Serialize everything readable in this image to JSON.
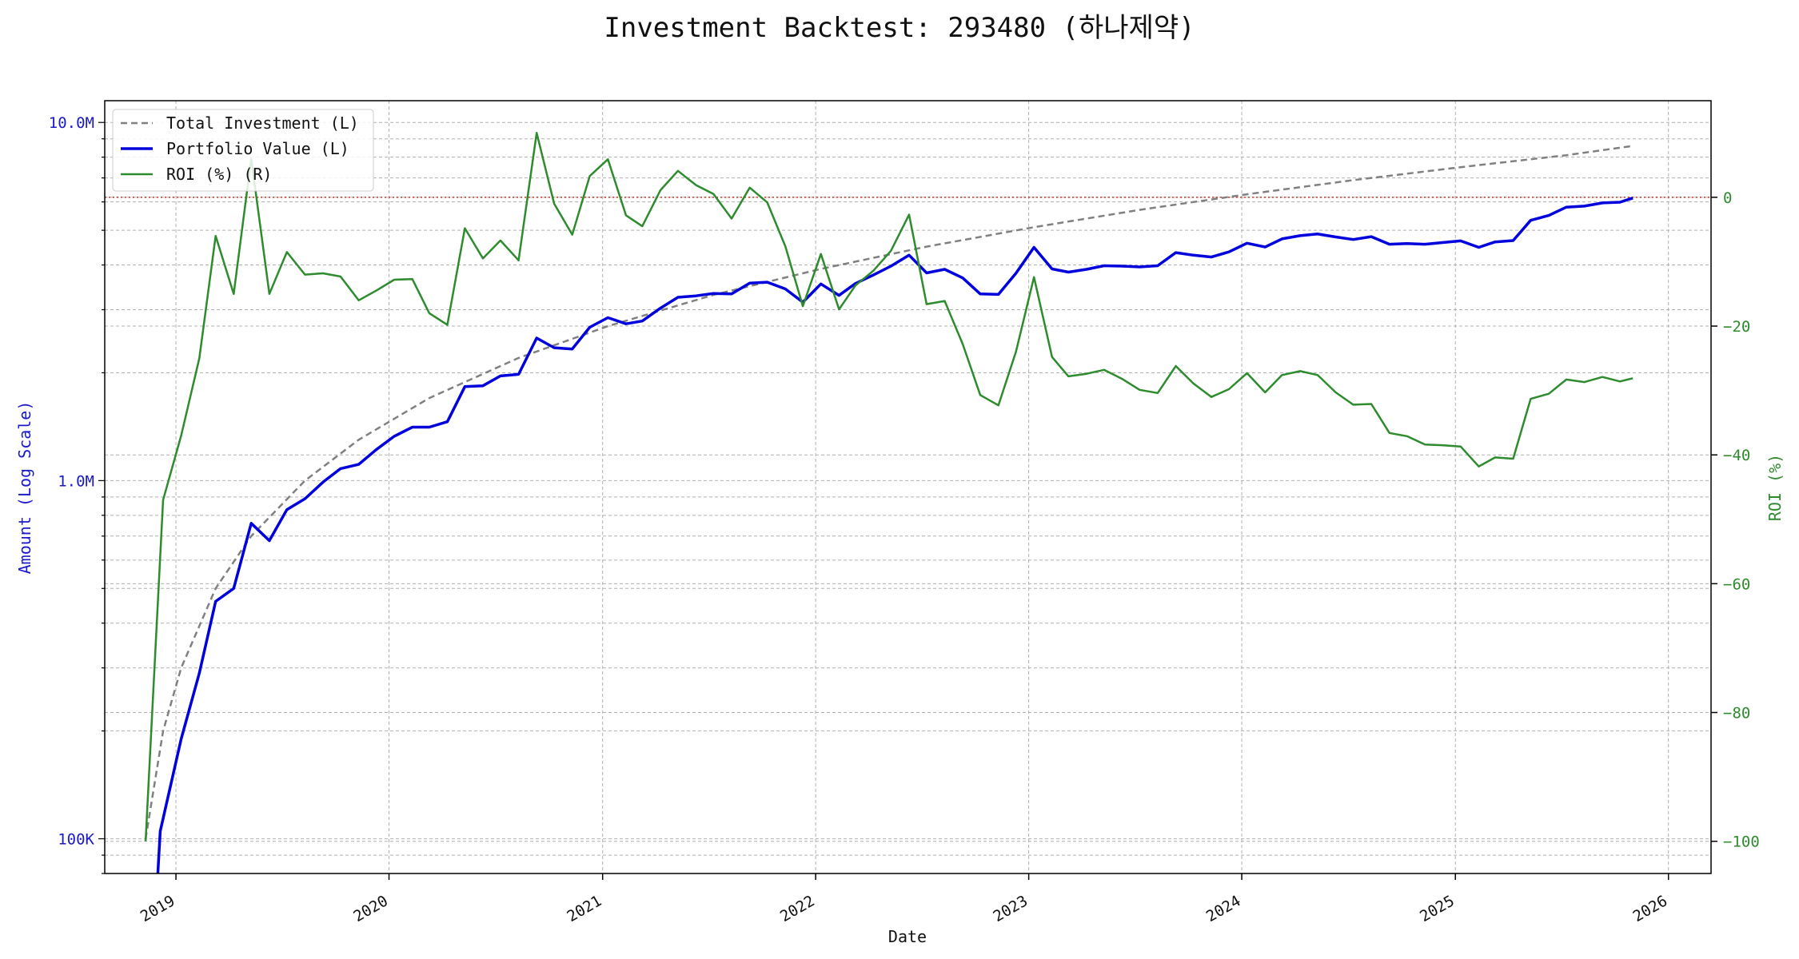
{
  "chart_data": {
    "type": "line",
    "title": "Investment Backtest: 293480 (하나제약)",
    "xlabel": "Date",
    "ylabel_left": "Amount (Log Scale)",
    "ylabel_right": "ROI (%)",
    "left_scale": "log",
    "left_ylim": [
      80000,
      11500000
    ],
    "right_ylim": [
      -105,
      15
    ],
    "x_range": [
      "2018-09-01",
      "2026-03-15"
    ],
    "x_ticks": [
      "2019",
      "2020",
      "2021",
      "2022",
      "2023",
      "2024",
      "2025",
      "2026"
    ],
    "left_ticks": [
      {
        "value": 100000,
        "label": "100K"
      },
      {
        "value": 1000000,
        "label": "1.0M"
      },
      {
        "value": 10000000,
        "label": "10.0M"
      }
    ],
    "right_ticks": [
      0,
      -20,
      -40,
      -60,
      -80,
      -100
    ],
    "zero_line_color": "#c0392b",
    "grid": true,
    "legend_position": "upper-left",
    "legend": [
      {
        "label": "Total Investment (L)",
        "color": "#808080",
        "style": "dashed"
      },
      {
        "label": "Portfolio Value (L)",
        "color": "#0000dd",
        "style": "solid"
      },
      {
        "label": "ROI (%) (R)",
        "color": "#2e8b2e",
        "style": "solid"
      }
    ],
    "series": [
      {
        "name": "Total Investment (L)",
        "axis": "left",
        "color": "#808080",
        "dash": true,
        "x": [
          "2018-11-10",
          "2018-12-10",
          "2019-01-10",
          "2019-03-10",
          "2019-05-10",
          "2019-08-10",
          "2019-11-10",
          "2020-03-10",
          "2020-08-10",
          "2021-01-10",
          "2021-07-10",
          "2022-01-10",
          "2022-07-10",
          "2023-01-10",
          "2023-07-10",
          "2024-01-10",
          "2024-07-10",
          "2025-01-10",
          "2025-07-10",
          "2025-11-01"
        ],
        "values": [
          100000,
          200000,
          300000,
          500000,
          700000,
          1000000,
          1300000,
          1700000,
          2200000,
          2700000,
          3300000,
          3900000,
          4500000,
          5100000,
          5700000,
          6300000,
          6900000,
          7500000,
          8100000,
          8600000
        ]
      },
      {
        "name": "Portfolio Value (L)",
        "axis": "left",
        "color": "#0000dd",
        "dash": false,
        "x": [
          "2018-12-01",
          "2018-12-05",
          "2019-01-10",
          "2019-02-10",
          "2019-03-10",
          "2019-04-10",
          "2019-05-10",
          "2019-06-10",
          "2019-07-10",
          "2019-08-10",
          "2019-09-10",
          "2019-10-10",
          "2019-11-10",
          "2019-12-10",
          "2020-01-10",
          "2020-02-10",
          "2020-03-10",
          "2020-04-10",
          "2020-05-10",
          "2020-06-10",
          "2020-07-10",
          "2020-08-10",
          "2020-09-10",
          "2020-10-10",
          "2020-11-10",
          "2020-12-10",
          "2021-01-10",
          "2021-02-10",
          "2021-03-10",
          "2021-04-10",
          "2021-05-10",
          "2021-06-10",
          "2021-07-10",
          "2021-08-10",
          "2021-09-10",
          "2021-10-10",
          "2021-11-10",
          "2021-12-10",
          "2022-01-10",
          "2022-02-10",
          "2022-03-10",
          "2022-04-10",
          "2022-05-10",
          "2022-06-10",
          "2022-07-10",
          "2022-08-10",
          "2022-09-10",
          "2022-10-10",
          "2022-11-10",
          "2022-12-10",
          "2023-01-10",
          "2023-02-10",
          "2023-03-10",
          "2023-04-10",
          "2023-05-10",
          "2023-06-10",
          "2023-07-10",
          "2023-08-10",
          "2023-09-10",
          "2023-10-10",
          "2023-11-10",
          "2023-12-10",
          "2024-01-10",
          "2024-02-10",
          "2024-03-10",
          "2024-04-10",
          "2024-05-10",
          "2024-06-10",
          "2024-07-10",
          "2024-08-10",
          "2024-09-10",
          "2024-10-10",
          "2024-11-10",
          "2024-12-10",
          "2025-01-10",
          "2025-02-10",
          "2025-03-10",
          "2025-04-10",
          "2025-05-10",
          "2025-06-10",
          "2025-07-10",
          "2025-08-10",
          "2025-09-10",
          "2025-10-10",
          "2025-11-01"
        ],
        "values": [
          80000,
          105000,
          190000,
          290000,
          460000,
          500000,
          760000,
          680000,
          830000,
          890000,
          990000,
          1080000,
          1110000,
          1220000,
          1330000,
          1410000,
          1410000,
          1460000,
          1830000,
          1840000,
          1960000,
          1980000,
          2500000,
          2350000,
          2330000,
          2680000,
          2850000,
          2740000,
          2790000,
          3030000,
          3250000,
          3280000,
          3330000,
          3320000,
          3560000,
          3580000,
          3430000,
          3150000,
          3540000,
          3290000,
          3550000,
          3750000,
          3970000,
          4260000,
          3800000,
          3890000,
          3680000,
          3320000,
          3310000,
          3790000,
          4480000,
          3900000,
          3820000,
          3890000,
          3980000,
          3970000,
          3950000,
          3980000,
          4330000,
          4260000,
          4210000,
          4350000,
          4600000,
          4490000,
          4730000,
          4830000,
          4880000,
          4790000,
          4710000,
          4800000,
          4570000,
          4590000,
          4570000,
          4620000,
          4670000,
          4480000,
          4640000,
          4680000,
          5330000,
          5500000,
          5800000,
          5840000,
          5960000,
          5990000,
          6150000
        ]
      },
      {
        "name": "ROI (%) (R)",
        "axis": "right",
        "color": "#2e8b2e",
        "dash": false,
        "x": [
          "2018-11-10",
          "2018-12-10",
          "2019-01-10",
          "2019-02-10",
          "2019-03-10",
          "2019-04-10",
          "2019-05-10",
          "2019-06-10",
          "2019-07-10",
          "2019-08-10",
          "2019-09-10",
          "2019-10-10",
          "2019-11-10",
          "2019-12-10",
          "2020-01-10",
          "2020-02-10",
          "2020-03-10",
          "2020-04-10",
          "2020-05-10",
          "2020-06-10",
          "2020-07-10",
          "2020-08-10",
          "2020-09-10",
          "2020-10-10",
          "2020-11-10",
          "2020-12-10",
          "2021-01-10",
          "2021-02-10",
          "2021-03-10",
          "2021-04-10",
          "2021-05-10",
          "2021-06-10",
          "2021-07-10",
          "2021-08-10",
          "2021-09-10",
          "2021-10-10",
          "2021-11-10",
          "2021-12-10",
          "2022-01-10",
          "2022-02-10",
          "2022-03-10",
          "2022-04-10",
          "2022-05-10",
          "2022-06-10",
          "2022-07-10",
          "2022-08-10",
          "2022-09-10",
          "2022-10-10",
          "2022-11-10",
          "2022-12-10",
          "2023-01-10",
          "2023-02-10",
          "2023-03-10",
          "2023-04-10",
          "2023-05-10",
          "2023-06-10",
          "2023-07-10",
          "2023-08-10",
          "2023-09-10",
          "2023-10-10",
          "2023-11-10",
          "2023-12-10",
          "2024-01-10",
          "2024-02-10",
          "2024-03-10",
          "2024-04-10",
          "2024-05-10",
          "2024-06-10",
          "2024-07-10",
          "2024-08-10",
          "2024-09-10",
          "2024-10-10",
          "2024-11-10",
          "2024-12-10",
          "2025-01-10",
          "2025-02-10",
          "2025-03-10",
          "2025-04-10",
          "2025-05-10",
          "2025-06-10",
          "2025-07-10",
          "2025-08-10",
          "2025-09-10",
          "2025-10-10",
          "2025-11-01"
        ],
        "values": [
          -100,
          -47,
          -37,
          -25,
          -6,
          -15,
          6,
          -15,
          -8.5,
          -12,
          -11.8,
          -12.3,
          -16,
          -14.5,
          -12.8,
          -12.7,
          -18,
          -19.8,
          -4.8,
          -9.5,
          -6.7,
          -9.8,
          10,
          -1,
          -5.8,
          3.3,
          5.9,
          -2.8,
          -4.5,
          1.1,
          4.1,
          1.9,
          0.5,
          -3.3,
          1.5,
          -0.8,
          -7.6,
          -16.9,
          -8.8,
          -17.4,
          -13.7,
          -11.4,
          -8.3,
          -2.7,
          -16.6,
          -16.1,
          -22.8,
          -30.7,
          -32.3,
          -24,
          -12.4,
          -24.8,
          -27.8,
          -27.4,
          -26.8,
          -28.2,
          -29.9,
          -30.4,
          -26.2,
          -28.9,
          -31,
          -29.8,
          -27.3,
          -30.3,
          -27.6,
          -27,
          -27.6,
          -30.3,
          -32.2,
          -32.1,
          -36.6,
          -37.1,
          -38.4,
          -38.5,
          -38.7,
          -41.8,
          -40.4,
          -40.6,
          -31.3,
          -30.5,
          -28.3,
          -28.7,
          -27.9,
          -28.6,
          -28.1
        ]
      }
    ]
  }
}
